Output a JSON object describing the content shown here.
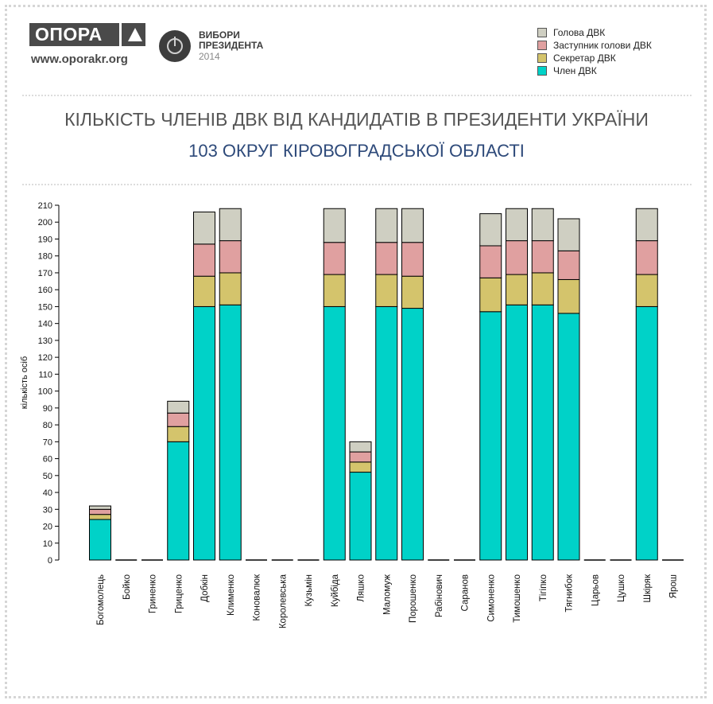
{
  "header": {
    "logo_text": "ОПОРА",
    "site": "www.oporakr.org",
    "election_line1": "ВИБОРИ",
    "election_line2": "ПРЕЗИДЕНТА",
    "election_year": "2014"
  },
  "chart_data": {
    "type": "bar",
    "stacked": true,
    "title": "КІЛЬКІСТЬ ЧЛЕНІВ ДВК ВІД КАНДИДАТІВ В ПРЕЗИДЕНТИ УКРАЇНИ",
    "subtitle": "103 ОКРУГ КІРОВОГРАДСЬКОЇ ОБЛАСТІ",
    "xlabel": "",
    "ylabel": "кількість осіб",
    "ylim": [
      0,
      210
    ],
    "yticks": [
      0,
      10,
      20,
      30,
      40,
      50,
      60,
      70,
      80,
      90,
      100,
      110,
      120,
      130,
      140,
      150,
      160,
      170,
      180,
      190,
      200,
      210
    ],
    "legend_position": "top-right",
    "categories": [
      "Богомолець",
      "Бойко",
      "Гриненко",
      "Гриценко",
      "Добкін",
      "Клименко",
      "Коновалюк",
      "Королевська",
      "Кузьмін",
      "Куйбіда",
      "Ляшко",
      "Маломуж",
      "Порошенко",
      "Рабінович",
      "Саранов",
      "Симоненко",
      "Тимошенко",
      "Тігіпко",
      "Тягнибок",
      "Царьов",
      "Цушко",
      "Шкіряк",
      "Ярош"
    ],
    "series": [
      {
        "name": "Член ДВК",
        "color": "#00d2c8",
        "values": [
          24,
          0,
          0,
          70,
          150,
          151,
          0,
          0,
          0,
          150,
          52,
          150,
          149,
          0,
          0,
          147,
          151,
          151,
          146,
          0,
          0,
          150,
          0
        ]
      },
      {
        "name": "Секретар ДВК",
        "color": "#d4c46c",
        "values": [
          3,
          0,
          0,
          9,
          18,
          19,
          0,
          0,
          0,
          19,
          6,
          19,
          19,
          0,
          0,
          20,
          18,
          19,
          20,
          0,
          0,
          19,
          0
        ]
      },
      {
        "name": "Заступник голови ДВК",
        "color": "#e0a0a0",
        "values": [
          3,
          0,
          0,
          8,
          19,
          19,
          0,
          0,
          0,
          19,
          6,
          19,
          20,
          0,
          0,
          19,
          20,
          19,
          17,
          0,
          0,
          20,
          0
        ]
      },
      {
        "name": "Голова ДВК",
        "color": "#cfcfc2",
        "values": [
          2,
          0,
          0,
          7,
          19,
          19,
          0,
          0,
          0,
          20,
          6,
          20,
          20,
          0,
          0,
          19,
          19,
          19,
          19,
          0,
          0,
          19,
          0
        ]
      }
    ]
  }
}
